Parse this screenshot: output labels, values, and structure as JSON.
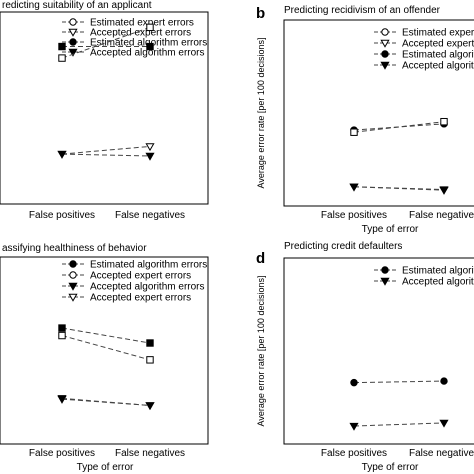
{
  "chart_data": [
    {
      "panel_letter": "",
      "title": "redicting suitability of an applicant",
      "type": "line",
      "categories": [
        "False positives",
        "False negatives"
      ],
      "xlabel": "",
      "ylabel": "",
      "ylim": [
        0,
        50
      ],
      "legend_position": "top-right",
      "series": [
        {
          "name": "Estimated expert errors",
          "marker": "open-circle",
          "values": [
            null,
            null
          ]
        },
        {
          "name": "Accepted expert errors",
          "marker": "open-triangle",
          "values": [
            13,
            15
          ]
        },
        {
          "name": "Estimated algorithm errors",
          "marker": "filled-circle",
          "values": [
            null,
            null
          ]
        },
        {
          "name": "Accepted algorithm errors",
          "marker": "filled-triangle",
          "values": [
            13,
            12.5
          ]
        },
        {
          "name": "",
          "marker": "open-square",
          "values": [
            38,
            46
          ]
        },
        {
          "name": "",
          "marker": "filled-square",
          "values": [
            41,
            41
          ]
        }
      ]
    },
    {
      "panel_letter": "b",
      "title": "Predicting recidivism of an offender",
      "type": "line",
      "categories": [
        "False positives",
        "False negatives"
      ],
      "xlabel": "Type of error",
      "ylabel": "Average error rate [per 100 decisions]",
      "ylim": [
        0,
        60
      ],
      "legend_position": "top-right",
      "series": [
        {
          "name": "Estimated expert",
          "marker": "open-circle",
          "values": [
            null,
            null
          ]
        },
        {
          "name": "Accepted expert e",
          "marker": "open-triangle",
          "values": [
            6.2,
            5.3
          ]
        },
        {
          "name": "Estimated algorithm",
          "marker": "filled-circle",
          "values": [
            24.5,
            26.5
          ]
        },
        {
          "name": "Accepted algorithm",
          "marker": "filled-triangle",
          "values": [
            6.2,
            5.1
          ]
        },
        {
          "name": "",
          "marker": "open-square",
          "values": [
            23.8,
            27.2
          ]
        }
      ]
    },
    {
      "panel_letter": "",
      "title": "assifying healthiness of behavior",
      "type": "line",
      "categories": [
        "False positives",
        "False negatives"
      ],
      "xlabel": "Type of error",
      "ylabel": "",
      "ylim": [
        0,
        50
      ],
      "legend_position": "top-right",
      "series": [
        {
          "name": "Estimated algorithm errors",
          "marker": "filled-circle",
          "values": [
            null,
            null
          ]
        },
        {
          "name": "Accepted expert errors",
          "marker": "open-circle",
          "values": [
            null,
            null
          ]
        },
        {
          "name": "Accepted algorithm errors",
          "marker": "filled-triangle",
          "values": [
            null,
            null
          ]
        },
        {
          "name": "Accepted expert errors",
          "marker": "open-triangle",
          "values": [
            12,
            10.3
          ]
        },
        {
          "name": "",
          "marker": "filled-square",
          "values": [
            31,
            27
          ]
        },
        {
          "name": "",
          "marker": "open-square",
          "values": [
            29,
            22.5
          ]
        },
        {
          "name": "",
          "marker": "filled-triangle-plain",
          "values": [
            12.2,
            10.3
          ]
        }
      ]
    },
    {
      "panel_letter": "d",
      "title": "Predicting credit defaulters",
      "type": "line",
      "categories": [
        "False positives",
        "False negatives"
      ],
      "xlabel": "Type of error",
      "ylabel": "Average error rate [per 100 decisions]",
      "ylim": [
        0,
        60
      ],
      "legend_position": "top-right",
      "series": [
        {
          "name": "Estimated algorithm",
          "marker": "filled-circle",
          "values": [
            19.8,
            20.3
          ]
        },
        {
          "name": "Accepted algorithm",
          "marker": "filled-triangle",
          "values": [
            5.8,
            6.8
          ]
        }
      ]
    }
  ]
}
